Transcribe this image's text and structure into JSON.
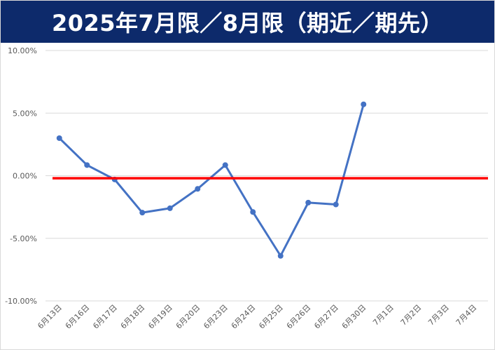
{
  "title": "2025年7月限／8月限（期近／期先）",
  "colors": {
    "title_bg": "#0d2a6b",
    "series": "#4472c4",
    "reference_line": "#ff0000",
    "grid": "#d9d9d9"
  },
  "chart_data": {
    "type": "line",
    "title": "2025年7月限／8月限（期近／期先）",
    "xlabel": "",
    "ylabel": "",
    "ylim": [
      -10,
      10
    ],
    "y_ticks": [
      10,
      5,
      0,
      -5,
      -10
    ],
    "y_tick_labels": [
      "10.00%",
      "5.00%",
      "0.00%",
      "-5.00%",
      "-10.00%"
    ],
    "grid": true,
    "legend": "none",
    "categories": [
      "6月13日",
      "6月16日",
      "6月17日",
      "6月18日",
      "6月19日",
      "6月20日",
      "6月23日",
      "6月24日",
      "6月25日",
      "6月26日",
      "6月27日",
      "6月30日",
      "7月1日",
      "7月2日",
      "7月3日",
      "7月4日"
    ],
    "series": [
      {
        "values": [
          3.0,
          0.85,
          -0.3,
          -2.95,
          -2.6,
          -1.05,
          0.85,
          -2.9,
          -6.4,
          -2.15,
          -2.3,
          5.7,
          null,
          null,
          null,
          null
        ]
      }
    ],
    "reference_line": {
      "y": -0.2
    }
  }
}
